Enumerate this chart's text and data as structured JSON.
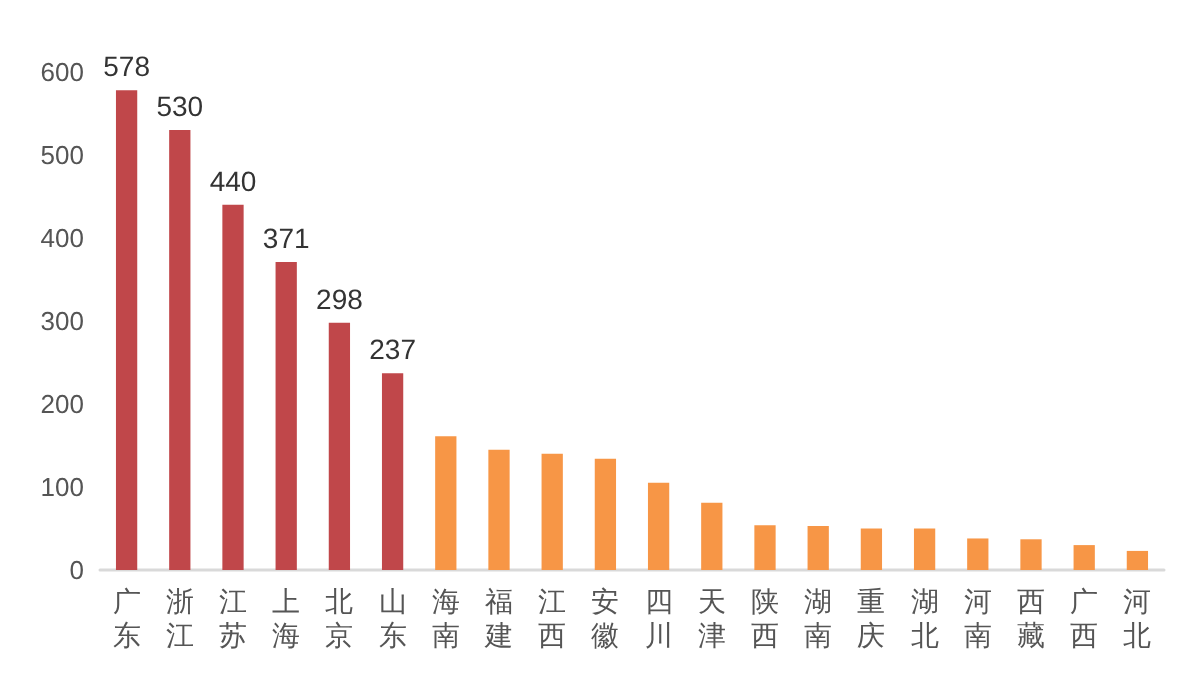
{
  "chart_data": {
    "type": "bar",
    "categories": [
      "广东",
      "浙江",
      "江苏",
      "上海",
      "北京",
      "山东",
      "海南",
      "福建",
      "江西",
      "安徽",
      "四川",
      "天津",
      "陕西",
      "湖南",
      "重庆",
      "湖北",
      "河南",
      "西藏",
      "广西",
      "河北"
    ],
    "values": [
      578,
      530,
      440,
      371,
      298,
      237,
      161,
      145,
      140,
      134,
      105,
      81,
      54,
      53,
      50,
      50,
      38,
      37,
      30,
      23
    ],
    "colors": [
      "#c0474a",
      "#c0474a",
      "#c0474a",
      "#c0474a",
      "#c0474a",
      "#c0474a",
      "#f79646",
      "#f79646",
      "#f79646",
      "#f79646",
      "#f79646",
      "#f79646",
      "#f79646",
      "#f79646",
      "#f79646",
      "#f79646",
      "#f79646",
      "#f79646",
      "#f79646",
      "#f79646"
    ],
    "value_labels": [
      "578",
      "530",
      "440",
      "371",
      "298",
      "237",
      null,
      null,
      null,
      null,
      null,
      null,
      null,
      null,
      null,
      null,
      null,
      null,
      null,
      null
    ],
    "ylim": [
      0,
      600
    ],
    "yticks": [
      0,
      100,
      200,
      300,
      400,
      500,
      600
    ],
    "grid": false
  }
}
